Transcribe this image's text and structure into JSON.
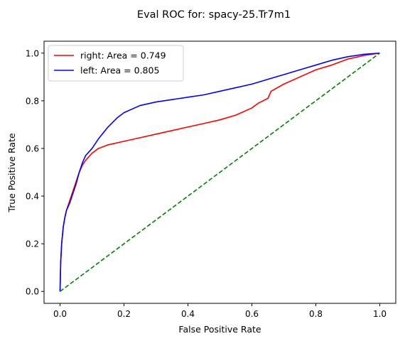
{
  "chart_data": {
    "type": "line",
    "title": "Eval ROC for: spacy-25.Tr7m1",
    "xlabel": "False Positive Rate",
    "ylabel": "True Positive Rate",
    "xlim": [
      -0.05,
      1.05
    ],
    "ylim": [
      -0.05,
      1.05
    ],
    "xticks": [
      "0.0",
      "0.2",
      "0.4",
      "0.6",
      "0.8",
      "1.0"
    ],
    "yticks": [
      "0.0",
      "0.2",
      "0.4",
      "0.6",
      "0.8",
      "1.0"
    ],
    "grid": false,
    "legend_location": "upper left",
    "series": [
      {
        "name": "right: Area = 0.749",
        "color": "#ff0000",
        "style": "solid",
        "x": [
          0.0,
          0.002,
          0.005,
          0.01,
          0.015,
          0.02,
          0.03,
          0.04,
          0.05,
          0.06,
          0.07,
          0.08,
          0.1,
          0.12,
          0.15,
          0.2,
          0.25,
          0.3,
          0.35,
          0.4,
          0.45,
          0.5,
          0.55,
          0.6,
          0.62,
          0.65,
          0.66,
          0.7,
          0.75,
          0.8,
          0.85,
          0.9,
          0.95,
          1.0
        ],
        "y": [
          0.0,
          0.12,
          0.2,
          0.27,
          0.31,
          0.34,
          0.38,
          0.42,
          0.46,
          0.5,
          0.53,
          0.55,
          0.58,
          0.6,
          0.615,
          0.63,
          0.645,
          0.66,
          0.675,
          0.69,
          0.705,
          0.72,
          0.74,
          0.77,
          0.79,
          0.81,
          0.84,
          0.87,
          0.9,
          0.93,
          0.95,
          0.975,
          0.99,
          1.0
        ]
      },
      {
        "name": "left: Area = 0.805",
        "color": "#0000ff",
        "style": "solid",
        "x": [
          0.0,
          0.002,
          0.005,
          0.01,
          0.015,
          0.02,
          0.03,
          0.04,
          0.05,
          0.06,
          0.07,
          0.08,
          0.1,
          0.12,
          0.15,
          0.18,
          0.2,
          0.25,
          0.3,
          0.35,
          0.4,
          0.45,
          0.5,
          0.55,
          0.6,
          0.65,
          0.7,
          0.75,
          0.8,
          0.85,
          0.9,
          0.95,
          1.0
        ],
        "y": [
          0.0,
          0.12,
          0.2,
          0.27,
          0.31,
          0.34,
          0.37,
          0.41,
          0.45,
          0.5,
          0.54,
          0.57,
          0.6,
          0.64,
          0.69,
          0.73,
          0.75,
          0.78,
          0.795,
          0.805,
          0.815,
          0.825,
          0.84,
          0.855,
          0.87,
          0.89,
          0.91,
          0.93,
          0.95,
          0.97,
          0.985,
          0.995,
          1.0
        ]
      },
      {
        "color": "#008000",
        "style": "dashed",
        "x": [
          0.0,
          1.0
        ],
        "y": [
          0.0,
          1.0
        ]
      }
    ]
  }
}
